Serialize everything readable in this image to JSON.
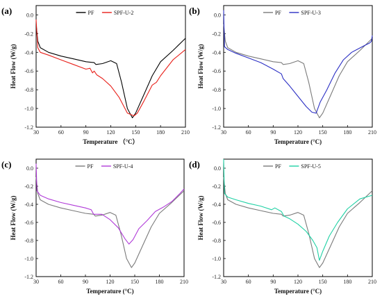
{
  "chart_data": [
    {
      "panel_label": "(a)",
      "type": "line",
      "xlabel": "Temperature （°C）",
      "ylabel": "Heat Flow (W/g)",
      "xlim": [
        30,
        210
      ],
      "ylim": [
        -1.2,
        0.1
      ],
      "xticks": [
        30,
        60,
        90,
        120,
        150,
        180,
        210
      ],
      "yticks": [
        0.0,
        -0.2,
        -0.4,
        -0.6,
        -0.8,
        -1.0,
        -1.2
      ],
      "legend_position": "top-center",
      "series": [
        {
          "name": "PF",
          "color": "#000000",
          "x": [
            30,
            32,
            35,
            45,
            60,
            75,
            90,
            100,
            102,
            110,
            120,
            127,
            133,
            140,
            146,
            150,
            160,
            170,
            180,
            195,
            210
          ],
          "y": [
            -0.1,
            -0.28,
            -0.35,
            -0.4,
            -0.44,
            -0.47,
            -0.5,
            -0.51,
            -0.53,
            -0.52,
            -0.49,
            -0.52,
            -0.72,
            -1.0,
            -1.1,
            -1.05,
            -0.85,
            -0.65,
            -0.5,
            -0.38,
            -0.25
          ]
        },
        {
          "name": "SPF-U-2",
          "color": "#e8201a",
          "x": [
            30,
            32,
            35,
            45,
            60,
            75,
            90,
            95,
            98,
            100,
            103,
            110,
            120,
            130,
            140,
            148,
            152,
            160,
            170,
            175,
            180,
            195,
            210
          ],
          "y": [
            -0.05,
            -0.35,
            -0.4,
            -0.43,
            -0.48,
            -0.53,
            -0.58,
            -0.57,
            -0.62,
            -0.6,
            -0.64,
            -0.68,
            -0.76,
            -0.88,
            -1.05,
            -1.08,
            -1.05,
            -0.92,
            -0.75,
            -0.72,
            -0.65,
            -0.48,
            -0.37
          ]
        }
      ]
    },
    {
      "panel_label": "(b)",
      "type": "line",
      "xlabel": "Temperature (°C)",
      "ylabel": "Heat Flow (W/g)",
      "xlim": [
        30,
        210
      ],
      "ylim": [
        -1.2,
        0.1
      ],
      "xticks": [
        30,
        60,
        90,
        120,
        150,
        180,
        210
      ],
      "yticks": [
        0.0,
        -0.2,
        -0.4,
        -0.6,
        -0.8,
        -1.0,
        -1.2
      ],
      "legend_position": "top-center",
      "series": [
        {
          "name": "PF",
          "color": "#7a7a7a",
          "x": [
            30,
            32,
            35,
            45,
            60,
            75,
            90,
            100,
            102,
            110,
            120,
            127,
            133,
            140,
            146,
            150,
            160,
            170,
            180,
            195,
            210
          ],
          "y": [
            -0.1,
            -0.28,
            -0.35,
            -0.4,
            -0.44,
            -0.47,
            -0.5,
            -0.51,
            -0.53,
            -0.52,
            -0.49,
            -0.52,
            -0.72,
            -1.0,
            -1.1,
            -1.05,
            -0.85,
            -0.65,
            -0.5,
            -0.38,
            -0.25
          ]
        },
        {
          "name": "SPF-U-3",
          "color": "#2b2fc4",
          "x": [
            30,
            31,
            35,
            45,
            60,
            75,
            90,
            100,
            102,
            110,
            120,
            130,
            137,
            142,
            147,
            155,
            165,
            175,
            185,
            200,
            207,
            209,
            210
          ],
          "y": [
            0.05,
            -0.34,
            -0.37,
            -0.41,
            -0.46,
            -0.51,
            -0.58,
            -0.63,
            -0.68,
            -0.76,
            -0.87,
            -0.98,
            -1.04,
            -1.05,
            -0.93,
            -0.8,
            -0.62,
            -0.48,
            -0.4,
            -0.33,
            -0.3,
            -0.28,
            -0.22
          ]
        }
      ]
    },
    {
      "panel_label": "(c)",
      "type": "line",
      "xlabel": "Temperature (°C)",
      "ylabel": "Heat Flow (W/g)",
      "xlim": [
        30,
        210
      ],
      "ylim": [
        -1.2,
        0.1
      ],
      "xticks": [
        30,
        60,
        90,
        120,
        150,
        180,
        210
      ],
      "yticks": [
        0.0,
        -0.2,
        -0.4,
        -0.6,
        -0.8,
        -1.0,
        -1.2
      ],
      "legend_position": "top-center",
      "series": [
        {
          "name": "PF",
          "color": "#7a7a7a",
          "x": [
            30,
            32,
            35,
            45,
            60,
            75,
            90,
            100,
            102,
            110,
            120,
            127,
            133,
            140,
            146,
            150,
            160,
            170,
            180,
            195,
            210
          ],
          "y": [
            -0.1,
            -0.28,
            -0.35,
            -0.4,
            -0.44,
            -0.47,
            -0.5,
            -0.51,
            -0.53,
            -0.52,
            -0.49,
            -0.52,
            -0.72,
            -1.0,
            -1.1,
            -1.05,
            -0.85,
            -0.65,
            -0.5,
            -0.38,
            -0.25
          ]
        },
        {
          "name": "SPF-U-4",
          "color": "#b03ad8",
          "x": [
            30,
            31,
            35,
            45,
            60,
            75,
            90,
            97,
            100,
            103,
            110,
            120,
            130,
            138,
            143,
            148,
            155,
            165,
            175,
            185,
            195,
            205,
            210
          ],
          "y": [
            0.05,
            -0.25,
            -0.3,
            -0.34,
            -0.38,
            -0.41,
            -0.44,
            -0.46,
            -0.51,
            -0.51,
            -0.51,
            -0.57,
            -0.66,
            -0.78,
            -0.84,
            -0.79,
            -0.67,
            -0.58,
            -0.48,
            -0.43,
            -0.37,
            -0.28,
            -0.23
          ]
        }
      ]
    },
    {
      "panel_label": "(d)",
      "type": "line",
      "xlabel": "Temperature (°C)",
      "ylabel": "Heat Flow (W/g)",
      "xlim": [
        30,
        210
      ],
      "ylim": [
        -1.2,
        0.1
      ],
      "xticks": [
        30,
        60,
        90,
        120,
        150,
        180,
        210
      ],
      "yticks": [
        0.0,
        -0.2,
        -0.4,
        -0.6,
        -0.8,
        -1.0,
        -1.2
      ],
      "legend_position": "top-center",
      "series": [
        {
          "name": "PF",
          "color": "#7a7a7a",
          "x": [
            30,
            32,
            35,
            45,
            60,
            75,
            90,
            100,
            102,
            110,
            120,
            127,
            133,
            140,
            146,
            150,
            160,
            170,
            180,
            195,
            210
          ],
          "y": [
            -0.1,
            -0.28,
            -0.35,
            -0.4,
            -0.44,
            -0.47,
            -0.5,
            -0.51,
            -0.53,
            -0.52,
            -0.49,
            -0.52,
            -0.72,
            -1.0,
            -1.1,
            -1.05,
            -0.85,
            -0.65,
            -0.5,
            -0.38,
            -0.25
          ]
        },
        {
          "name": "SPF-U-5",
          "color": "#1fd1a4",
          "x": [
            30,
            31,
            35,
            45,
            60,
            75,
            88,
            92,
            100,
            103,
            110,
            120,
            130,
            138,
            143,
            146,
            150,
            158,
            168,
            180,
            195,
            210
          ],
          "y": [
            0.1,
            -0.28,
            -0.32,
            -0.35,
            -0.39,
            -0.42,
            -0.46,
            -0.44,
            -0.48,
            -0.53,
            -0.56,
            -0.62,
            -0.7,
            -0.8,
            -0.88,
            -1.02,
            -0.92,
            -0.75,
            -0.6,
            -0.45,
            -0.34,
            -0.3
          ]
        }
      ]
    }
  ]
}
